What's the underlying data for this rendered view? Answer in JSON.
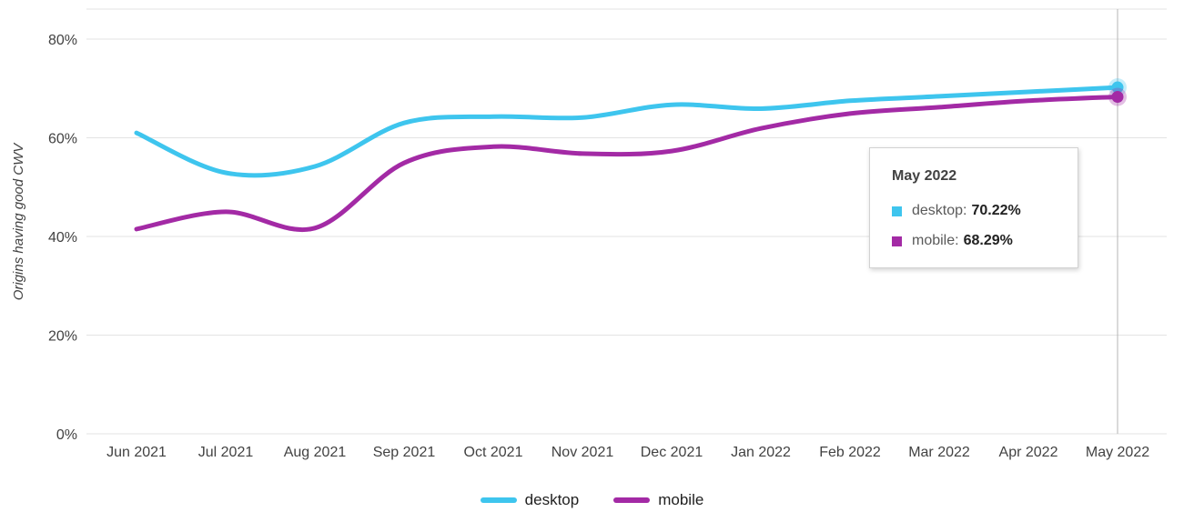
{
  "chart_data": {
    "type": "line",
    "title": "",
    "xlabel": "",
    "ylabel": "Origins having good CWV",
    "categories": [
      "Jun 2021",
      "Jul 2021",
      "Aug 2021",
      "Sep 2021",
      "Oct 2021",
      "Nov 2021",
      "Dec 2021",
      "Jan 2022",
      "Feb 2022",
      "Mar 2022",
      "Apr 2022",
      "May 2022"
    ],
    "series": [
      {
        "name": "desktop",
        "color": "#3ec5ee",
        "values": [
          61.0,
          52.9,
          54.2,
          63.0,
          64.3,
          64.1,
          66.7,
          65.9,
          67.5,
          68.4,
          69.3,
          70.22
        ]
      },
      {
        "name": "mobile",
        "color": "#a32aa5",
        "values": [
          41.5,
          45.0,
          41.7,
          54.9,
          58.2,
          56.8,
          57.3,
          61.9,
          64.9,
          66.2,
          67.5,
          68.29
        ]
      }
    ],
    "ylim": [
      0,
      80
    ],
    "yticks": [
      "0%",
      "20%",
      "40%",
      "60%",
      "80%"
    ],
    "grid": true,
    "legend_position": "bottom",
    "highlighted_category": "May 2022"
  },
  "tooltip": {
    "title": "May 2022",
    "rows": [
      {
        "label": "desktop:",
        "value": "70.22%",
        "color": "#3ec5ee"
      },
      {
        "label": "mobile:",
        "value": "68.29%",
        "color": "#a32aa5"
      }
    ]
  },
  "colors": {
    "gridline": "#e3e3e3",
    "crosshair": "#b5b5b5",
    "axis_text": "#424242"
  }
}
